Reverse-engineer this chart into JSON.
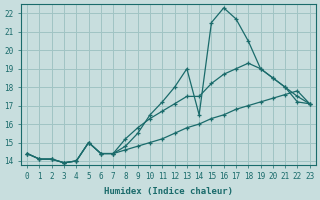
{
  "xlabel": "Humidex (Indice chaleur)",
  "ylabel": "",
  "bg_color": "#c8dede",
  "grid_color": "#a0c4c4",
  "line_color": "#1a6b6b",
  "xlim": [
    -0.5,
    23.5
  ],
  "ylim": [
    13.8,
    22.5
  ],
  "xticks": [
    0,
    1,
    2,
    3,
    4,
    5,
    6,
    7,
    8,
    9,
    10,
    11,
    12,
    13,
    14,
    15,
    16,
    17,
    18,
    19,
    20,
    21,
    22,
    23
  ],
  "yticks": [
    14,
    15,
    16,
    17,
    18,
    19,
    20,
    21,
    22
  ],
  "line1_x": [
    0,
    1,
    2,
    3,
    4,
    5,
    6,
    7,
    8,
    9,
    10,
    11,
    12,
    13,
    14,
    15,
    16,
    17,
    18,
    19,
    20,
    21,
    22,
    23
  ],
  "line1_y": [
    14.4,
    14.1,
    14.1,
    13.9,
    14.0,
    15.0,
    14.4,
    14.4,
    14.8,
    15.5,
    16.5,
    17.2,
    18.0,
    19.0,
    16.5,
    21.5,
    22.3,
    21.7,
    20.5,
    19.0,
    18.5,
    18.0,
    17.2,
    17.1
  ],
  "line2_x": [
    0,
    1,
    2,
    3,
    4,
    5,
    6,
    7,
    8,
    9,
    10,
    11,
    12,
    13,
    14,
    15,
    16,
    17,
    18,
    19,
    20,
    21,
    22,
    23
  ],
  "line2_y": [
    14.4,
    14.1,
    14.1,
    13.9,
    14.0,
    15.0,
    14.4,
    14.4,
    15.2,
    15.8,
    16.3,
    16.7,
    17.1,
    17.5,
    17.5,
    18.2,
    18.7,
    19.0,
    19.3,
    19.0,
    18.5,
    18.0,
    17.5,
    17.1
  ],
  "line3_x": [
    0,
    1,
    2,
    3,
    4,
    5,
    6,
    7,
    8,
    9,
    10,
    11,
    12,
    13,
    14,
    15,
    16,
    17,
    18,
    19,
    20,
    21,
    22,
    23
  ],
  "line3_y": [
    14.4,
    14.1,
    14.1,
    13.9,
    14.0,
    15.0,
    14.4,
    14.4,
    14.6,
    14.8,
    15.0,
    15.2,
    15.5,
    15.8,
    16.0,
    16.3,
    16.5,
    16.8,
    17.0,
    17.2,
    17.4,
    17.6,
    17.8,
    17.1
  ]
}
